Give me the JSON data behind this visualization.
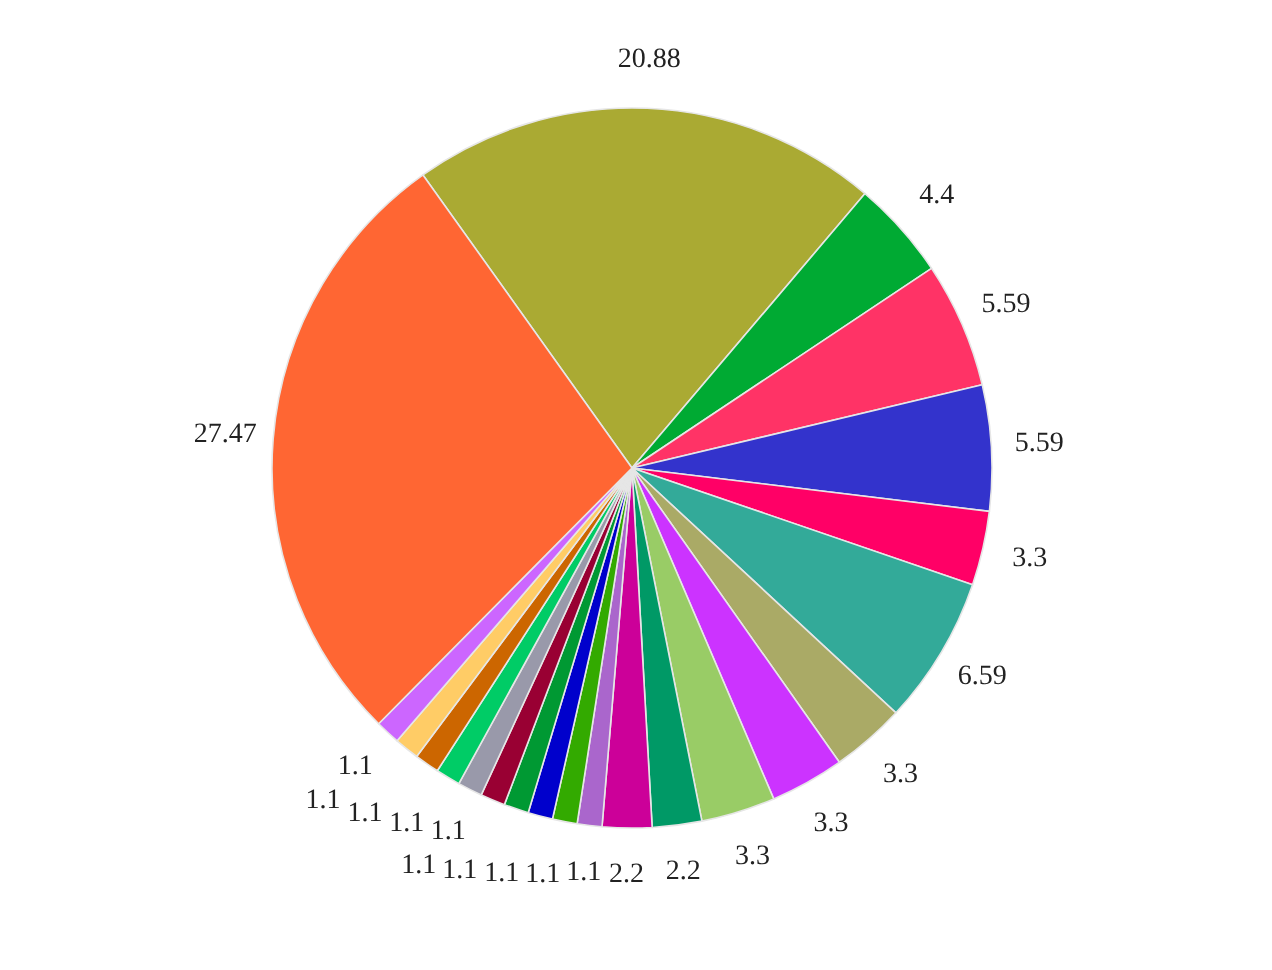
{
  "chart_data": {
    "type": "pie",
    "categories": [
      null,
      null,
      null,
      null,
      null,
      null,
      null,
      null,
      null,
      null,
      null,
      null,
      null,
      null,
      null,
      null,
      null,
      null,
      null,
      null,
      null,
      null
    ],
    "values": [
      20.88,
      4.4,
      5.59,
      5.59,
      3.3,
      6.59,
      3.3,
      3.3,
      3.3,
      2.2,
      2.2,
      1.1,
      1.1,
      1.1,
      1.1,
      1.1,
      1.1,
      1.1,
      1.1,
      1.1,
      1.1,
      27.47
    ],
    "colors": [
      "#aaaa33",
      "#00aa33",
      "#ff3366",
      "#3333cc",
      "#ff0066",
      "#33aa99",
      "#aaaa66",
      "#cc33ff",
      "#99cc66",
      "#009966",
      "#cc0099",
      "#aa66cc",
      "#33aa00",
      "#0000cc",
      "#009933",
      "#990033",
      "#9999aa",
      "#00cc66",
      "#cc6600",
      "#ffcc66",
      "#cc66ff",
      "#ff6633"
    ],
    "data_labels": true
  }
}
